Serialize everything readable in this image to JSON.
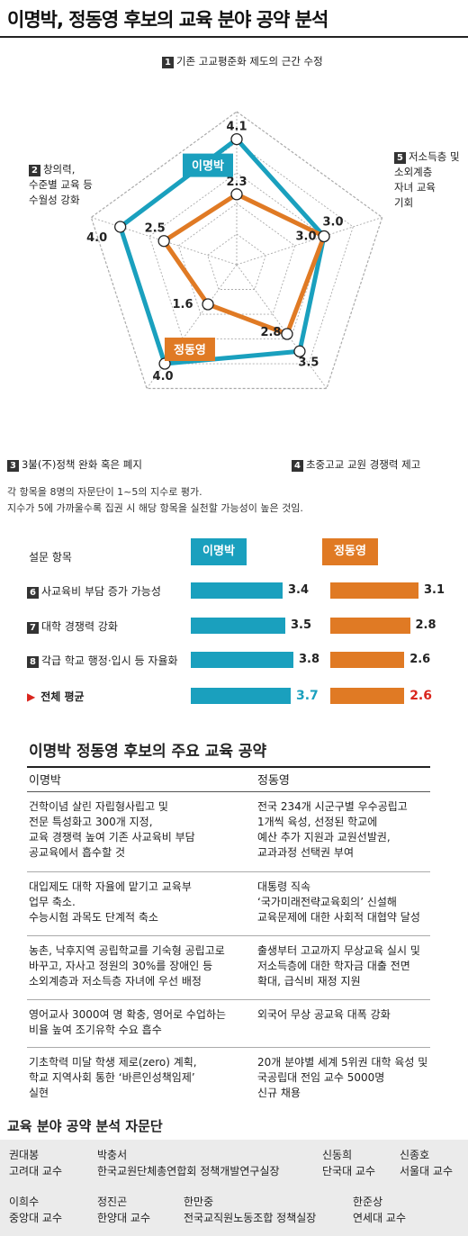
{
  "title": "이명박, 정동영 후보의 교육 분야 공약 분석",
  "chart_data": [
    {
      "type": "radar",
      "title": "",
      "categories": [
        {
          "num": "1",
          "label": "기존 고교평준화 제도의 근간 수정"
        },
        {
          "num": "5",
          "label": "저소득층 및\n소외계층\n자녀 교육\n기회"
        },
        {
          "num": "4",
          "label": "초중고교 교원 경쟁력 제고"
        },
        {
          "num": "3",
          "label": "3불(不)정책 완화 혹은 폐지"
        },
        {
          "num": "2",
          "label": "창의력,\n수준별 교육 등\n수월성 강화"
        }
      ],
      "series": [
        {
          "name": "이명박",
          "values": [
            4.1,
            3.0,
            3.5,
            4.0,
            4.0
          ],
          "color": "#1aa0be"
        },
        {
          "name": "정동영",
          "values": [
            2.3,
            3.0,
            2.8,
            1.6,
            2.5
          ],
          "color": "#e07a24"
        }
      ],
      "value_labels": [
        "4.1",
        "3.0",
        "3.5",
        "4.0",
        "4.0",
        "2.3",
        "3.0",
        "2.8",
        "1.6",
        "2.5"
      ],
      "rlim": [
        0,
        5
      ]
    },
    {
      "type": "bar",
      "title": "",
      "categories": [
        "사교육비 부담 증가 가능성",
        "대학 경쟁력 강화",
        "각급 학교 행정·입시 등 자율화",
        "전체 평균"
      ],
      "category_nums": [
        "6",
        "7",
        "8",
        ""
      ],
      "series": [
        {
          "name": "이명박",
          "values": [
            3.4,
            3.5,
            3.8,
            3.7
          ],
          "color": "#1aa0be"
        },
        {
          "name": "정동영",
          "values": [
            3.1,
            2.8,
            2.6,
            2.6
          ],
          "color": "#e07a24"
        }
      ],
      "value_labels": {
        "lee": [
          "3.4",
          "3.5",
          "3.8",
          "3.7"
        ],
        "chung": [
          "3.1",
          "2.8",
          "2.6",
          "2.6"
        ]
      },
      "xlim": [
        0,
        5
      ]
    }
  ],
  "notes": [
    "각 항목을 8명의 자문단이 1~5의 지수로 평가.",
    "지수가 5에 가까울수록 집권 시 해당 항목을 실천할 가능성이 높은 것임."
  ],
  "survey": {
    "header": "설문 항목",
    "total_label": "전체 평균",
    "arrow": "▶"
  },
  "pledges": {
    "title": "이명박 정동영 후보의 주요 교육 공약",
    "col1": "이명박",
    "col2": "정동영",
    "rows": [
      {
        "lee": "건학이념 살린 자립형사립고 및\n전문 특성화고 300개 지정,\n교육 경쟁력 높여 기존 사교육비 부담\n공교육에서 흡수할 것",
        "chung": "전국 234개 시군구별 우수공립고\n1개씩 육성, 선정된 학교에\n 예산 추가 지원과 교원선발권,\n교과과정 선택권 부여"
      },
      {
        "lee": "대입제도 대학 자율에 맡기고 교육부\n업무 축소.\n수능시험 과목도 단계적 축소",
        "chung": "대통령 직속\n‘국가미래전략교육회의’ 신설해\n교육문제에 대한 사회적 대협약 달성"
      },
      {
        "lee": "농촌, 낙후지역 공립학교를 기숙형 공립고로\n바꾸고, 자사고 정원의 30%를 장애인 등\n소외계층과 저소득층 자녀에 우선 배정",
        "chung": "출생부터 고교까지 무상교육 실시 및\n저소득층에 대한 학자금 대출 전면\n확대, 급식비 재정 지원"
      },
      {
        "lee": "영어교사 3000여 명 확충, 영어로 수업하는\n비율 높여 조기유학 수요 흡수",
        "chung": "외국어 무상 공교육 대폭 강화"
      },
      {
        "lee": "기초학력 미달 학생 제로(zero) 계획,\n학교 지역사회 통한 ‘바른인성책임제’\n실현",
        "chung": "20개 분야별 세계 5위권 대학 육성 및\n국공립대 전임 교수 5000명\n신규 채용"
      }
    ]
  },
  "panel": {
    "title": "교육 분야 공약 분석 자문단",
    "members": [
      {
        "name": "권대봉",
        "org": "고려대 교수"
      },
      {
        "name": "박충서",
        "org": "한국교원단체총연합회 정책개발연구실장"
      },
      {
        "name": "신동희",
        "org": "단국대 교수"
      },
      {
        "name": "신종호",
        "org": "서울대 교수"
      },
      {
        "name": "이희수",
        "org": "중앙대 교수"
      },
      {
        "name": "정진곤",
        "org": "한양대 교수"
      },
      {
        "name": "한만중",
        "org": "전국교직원노동조합 정책실장"
      },
      {
        "name": "한준상",
        "org": "연세대 교수"
      }
    ]
  }
}
